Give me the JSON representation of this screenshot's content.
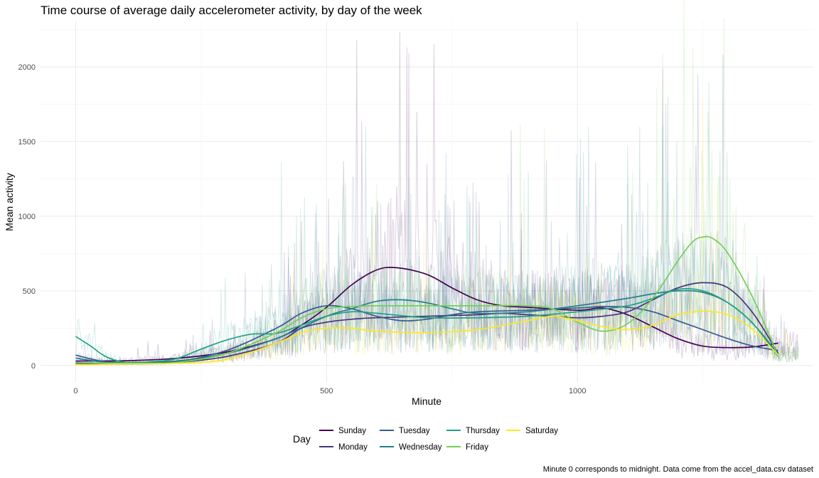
{
  "chart_data": {
    "type": "line",
    "title": "Time course of average daily accelerometer activity, by day of the week",
    "xlabel": "Minute",
    "ylabel": "Mean activity",
    "caption": "Minute 0 corresponds to midnight. Data come from the accel_data.csv dataset",
    "xlim": [
      -70,
      1470
    ],
    "ylim": [
      -115,
      2305
    ],
    "x_ticks": [
      0,
      500,
      1000
    ],
    "y_ticks": [
      0,
      500,
      1000,
      1500,
      2000
    ],
    "grid": true,
    "legend": {
      "title": "Day",
      "position": "bottom"
    },
    "series": [
      {
        "name": "Sunday",
        "color": "#440154",
        "smooth": [
          [
            0,
            30
          ],
          [
            100,
            32
          ],
          [
            200,
            48
          ],
          [
            300,
            90
          ],
          [
            400,
            180
          ],
          [
            450,
            270
          ],
          [
            500,
            390
          ],
          [
            550,
            540
          ],
          [
            600,
            640
          ],
          [
            640,
            655
          ],
          [
            700,
            610
          ],
          [
            750,
            520
          ],
          [
            800,
            440
          ],
          [
            850,
            400
          ],
          [
            900,
            390
          ],
          [
            1000,
            370
          ],
          [
            1050,
            385
          ],
          [
            1100,
            340
          ],
          [
            1150,
            260
          ],
          [
            1200,
            180
          ],
          [
            1250,
            130
          ],
          [
            1300,
            120
          ],
          [
            1350,
            125
          ],
          [
            1400,
            150
          ]
        ],
        "spikes": [
          [
            640,
            1200
          ],
          [
            660,
            2130
          ],
          [
            680,
            1700
          ],
          [
            700,
            1350
          ]
        ]
      },
      {
        "name": "Monday",
        "color": "#46337E",
        "smooth": [
          [
            0,
            15
          ],
          [
            100,
            10
          ],
          [
            200,
            20
          ],
          [
            300,
            60
          ],
          [
            400,
            150
          ],
          [
            450,
            250
          ],
          [
            500,
            290
          ],
          [
            550,
            310
          ],
          [
            600,
            320
          ],
          [
            700,
            330
          ],
          [
            800,
            340
          ],
          [
            850,
            350
          ],
          [
            900,
            340
          ],
          [
            950,
            330
          ],
          [
            1000,
            320
          ],
          [
            1050,
            330
          ],
          [
            1100,
            360
          ],
          [
            1150,
            440
          ],
          [
            1200,
            520
          ],
          [
            1250,
            555
          ],
          [
            1300,
            520
          ],
          [
            1350,
            350
          ],
          [
            1400,
            80
          ]
        ],
        "spikes": [
          [
            1170,
            1990
          ],
          [
            1240,
            1950
          ]
        ]
      },
      {
        "name": "Tuesday",
        "color": "#365C8D",
        "smooth": [
          [
            0,
            70
          ],
          [
            50,
            30
          ],
          [
            100,
            10
          ],
          [
            200,
            25
          ],
          [
            300,
            100
          ],
          [
            400,
            250
          ],
          [
            450,
            350
          ],
          [
            500,
            400
          ],
          [
            550,
            380
          ],
          [
            600,
            330
          ],
          [
            650,
            300
          ],
          [
            700,
            310
          ],
          [
            750,
            340
          ],
          [
            800,
            360
          ],
          [
            900,
            370
          ],
          [
            1000,
            385
          ],
          [
            1050,
            395
          ],
          [
            1100,
            390
          ],
          [
            1150,
            360
          ],
          [
            1200,
            300
          ],
          [
            1250,
            240
          ],
          [
            1300,
            180
          ],
          [
            1350,
            130
          ],
          [
            1400,
            100
          ]
        ],
        "spikes": [
          [
            1180,
            1800
          ]
        ]
      },
      {
        "name": "Wednesday",
        "color": "#277F8E",
        "smooth": [
          [
            0,
            50
          ],
          [
            50,
            25
          ],
          [
            100,
            20
          ],
          [
            200,
            30
          ],
          [
            300,
            80
          ],
          [
            400,
            180
          ],
          [
            500,
            330
          ],
          [
            550,
            380
          ],
          [
            600,
            430
          ],
          [
            650,
            440
          ],
          [
            700,
            420
          ],
          [
            750,
            380
          ],
          [
            800,
            350
          ],
          [
            900,
            360
          ],
          [
            1000,
            400
          ],
          [
            1100,
            450
          ],
          [
            1150,
            480
          ],
          [
            1200,
            500
          ],
          [
            1250,
            490
          ],
          [
            1300,
            420
          ],
          [
            1350,
            280
          ],
          [
            1400,
            75
          ]
        ],
        "spikes": [
          [
            1170,
            1600
          ]
        ]
      },
      {
        "name": "Thursday",
        "color": "#1FA187",
        "smooth": [
          [
            0,
            195
          ],
          [
            30,
            130
          ],
          [
            60,
            60
          ],
          [
            100,
            20
          ],
          [
            150,
            25
          ],
          [
            200,
            45
          ],
          [
            250,
            110
          ],
          [
            300,
            170
          ],
          [
            350,
            210
          ],
          [
            400,
            215
          ],
          [
            450,
            270
          ],
          [
            500,
            330
          ],
          [
            550,
            360
          ],
          [
            600,
            350
          ],
          [
            700,
            320
          ],
          [
            800,
            320
          ],
          [
            900,
            330
          ],
          [
            1000,
            360
          ],
          [
            1100,
            400
          ],
          [
            1150,
            450
          ],
          [
            1200,
            510
          ],
          [
            1250,
            500
          ],
          [
            1300,
            420
          ],
          [
            1350,
            280
          ],
          [
            1400,
            60
          ]
        ],
        "spikes": [
          [
            410,
            1360
          ],
          [
            440,
            1000
          ]
        ]
      },
      {
        "name": "Friday",
        "color": "#73D056",
        "smooth": [
          [
            0,
            20
          ],
          [
            100,
            15
          ],
          [
            200,
            20
          ],
          [
            300,
            80
          ],
          [
            400,
            220
          ],
          [
            450,
            320
          ],
          [
            500,
            380
          ],
          [
            550,
            395
          ],
          [
            600,
            400
          ],
          [
            700,
            400
          ],
          [
            800,
            400
          ],
          [
            900,
            400
          ],
          [
            950,
            380
          ],
          [
            1000,
            290
          ],
          [
            1050,
            230
          ],
          [
            1100,
            280
          ],
          [
            1150,
            450
          ],
          [
            1200,
            700
          ],
          [
            1230,
            830
          ],
          [
            1250,
            860
          ],
          [
            1270,
            850
          ],
          [
            1300,
            750
          ],
          [
            1350,
            450
          ],
          [
            1400,
            60
          ]
        ],
        "spikes": [
          [
            1230,
            2130
          ],
          [
            1260,
            1700
          ]
        ]
      },
      {
        "name": "Saturday",
        "color": "#FDE725",
        "smooth": [
          [
            0,
            5
          ],
          [
            100,
            10
          ],
          [
            200,
            15
          ],
          [
            300,
            40
          ],
          [
            400,
            150
          ],
          [
            450,
            220
          ],
          [
            500,
            250
          ],
          [
            550,
            250
          ],
          [
            600,
            230
          ],
          [
            700,
            220
          ],
          [
            800,
            240
          ],
          [
            900,
            300
          ],
          [
            950,
            330
          ],
          [
            1000,
            300
          ],
          [
            1050,
            260
          ],
          [
            1100,
            240
          ],
          [
            1150,
            270
          ],
          [
            1200,
            340
          ],
          [
            1250,
            365
          ],
          [
            1300,
            340
          ],
          [
            1350,
            240
          ],
          [
            1400,
            70
          ]
        ],
        "spikes": [
          [
            1250,
            1800
          ]
        ]
      }
    ]
  }
}
